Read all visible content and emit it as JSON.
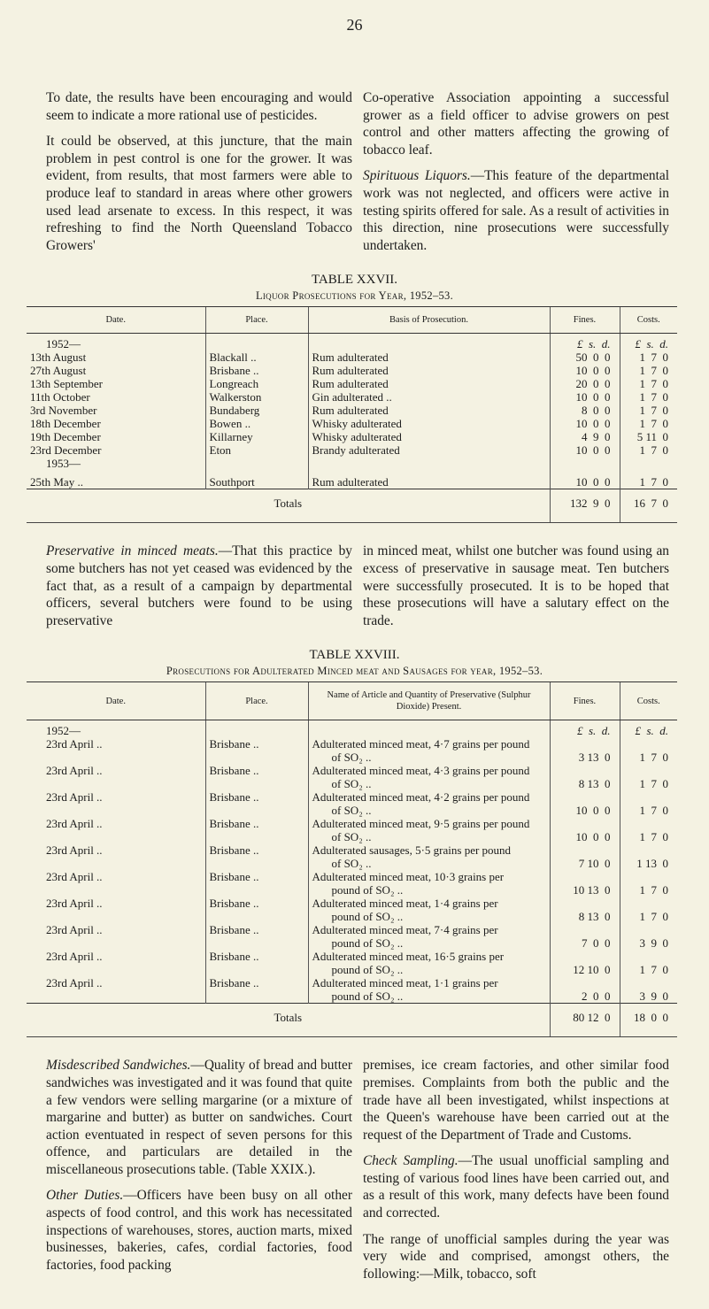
{
  "page_number": "26",
  "top_left": [
    "To date, the results have been encouraging and would seem to indicate a more rational use of pesticides.",
    "It could be observed, at this juncture, that the main problem in pest control is one for the grower. It was evident, from results, that most farmers were able to produce leaf to standard in areas where other growers used lead arsenate to excess. In this respect, it was refreshing to find the North Queensland Tobacco Growers'"
  ],
  "top_right": {
    "p1": "Co-operative Association appointing a successful grower as a field officer to advise growers on pest control and other matters affecting the growing of tobacco leaf.",
    "p2_heading": "Spirituous Liquors.",
    "p2": "—This feature of the departmental work was not neglected, and officers were active in testing spirits offered for sale. As a result of activities in this direction, nine prosecutions were successfully undertaken."
  },
  "table1": {
    "title": "TABLE XXVII.",
    "subtitle": "Liquor Prosecutions for Year, 1952–53.",
    "headers": [
      "Date.",
      "Place.",
      "Basis of Prosecution.",
      "Fines.",
      "Costs."
    ],
    "currency": "£  s.  d.",
    "year1": "1952—",
    "year2": "1953—",
    "rows": [
      {
        "date": "13th August",
        "place": "Blackall ..",
        "basis": "Rum adulterated",
        "fines": "50  0  0",
        "costs": "1  7  0"
      },
      {
        "date": "27th August",
        "place": "Brisbane ..",
        "basis": "Rum adulterated",
        "fines": "10  0  0",
        "costs": "1  7  0"
      },
      {
        "date": "13th September",
        "place": "Longreach",
        "basis": "Rum adulterated",
        "fines": "20  0  0",
        "costs": "1  7  0"
      },
      {
        "date": "11th October",
        "place": "Walkerston",
        "basis": "Gin adulterated ..",
        "fines": "10  0  0",
        "costs": "1  7  0"
      },
      {
        "date": "3rd November",
        "place": "Bundaberg",
        "basis": "Rum adulterated",
        "fines": "8  0  0",
        "costs": "1  7  0"
      },
      {
        "date": "18th December",
        "place": "Bowen ..",
        "basis": "Whisky adulterated",
        "fines": "10  0  0",
        "costs": "1  7  0"
      },
      {
        "date": "19th December",
        "place": "Killarney",
        "basis": "Whisky adulterated",
        "fines": "4  9  0",
        "costs": "5 11  0"
      },
      {
        "date": "23rd December",
        "place": "Eton",
        "basis": "Brandy adulterated",
        "fines": "10  0  0",
        "costs": "1  7  0"
      },
      {
        "date": "25th May ..",
        "place": "Southport",
        "basis": "Rum adulterated",
        "fines": "10  0  0",
        "costs": "1  7  0"
      }
    ],
    "totals_label": "Totals",
    "totals_fines": "132  9  0",
    "totals_costs": "16  7  0"
  },
  "middle_left": {
    "heading": "Preservative in minced meats.",
    "text": "—That this practice by some butchers has not yet ceased was evidenced by the fact that, as a result of a campaign by departmental officers, several butchers were found to be using preservative"
  },
  "middle_right": "in minced meat, whilst one butcher was found using an excess of preservative in sausage meat. Ten butchers were successfully prosecuted. It is to be hoped that these prosecutions will have a salutary effect on the trade.",
  "table2": {
    "title": "TABLE XXVIII.",
    "subtitle": "Prosecutions for Adulterated Minced meat and Sausages for year, 1952–53.",
    "headers": [
      "Date.",
      "Place.",
      "Name of Article and Quantity of Preservative (Sulphur Dioxide) Present.",
      "Fines.",
      "Costs."
    ],
    "currency": "£  s.  d.",
    "year": "1952—",
    "rows": [
      {
        "date": "23rd April ..",
        "place": "Brisbane ..",
        "l1": "Adulterated minced meat, 4·7 grains per pound",
        "l2": "of SO₂ ..",
        "fines": "3 13  0",
        "costs": "1  7  0"
      },
      {
        "date": "23rd April ..",
        "place": "Brisbane ..",
        "l1": "Adulterated minced meat, 4·3 grains per pound",
        "l2": "of SO₂ ..",
        "fines": "8 13  0",
        "costs": "1  7  0"
      },
      {
        "date": "23rd April ..",
        "place": "Brisbane ..",
        "l1": "Adulterated minced meat, 4·2 grains per pound",
        "l2": "of SO₂ ..",
        "fines": "10  0  0",
        "costs": "1  7  0"
      },
      {
        "date": "23rd April ..",
        "place": "Brisbane ..",
        "l1": "Adulterated minced meat, 9·5 grains per pound",
        "l2": "of SO₂ ..",
        "fines": "10  0  0",
        "costs": "1  7  0"
      },
      {
        "date": "23rd April ..",
        "place": "Brisbane ..",
        "l1": "Adulterated sausages, 5·5 grains per pound",
        "l2": "of SO₂ ..",
        "fines": "7 10  0",
        "costs": "1 13  0"
      },
      {
        "date": "23rd April ..",
        "place": "Brisbane ..",
        "l1": "Adulterated minced meat, 10·3 grains per",
        "l2": "pound of SO₂ ..",
        "fines": "10 13  0",
        "costs": "1  7  0"
      },
      {
        "date": "23rd April ..",
        "place": "Brisbane ..",
        "l1": "Adulterated minced meat, 1·4 grains per",
        "l2": "pound of SO₂ ..",
        "fines": "8 13  0",
        "costs": "1  7  0"
      },
      {
        "date": "23rd April ..",
        "place": "Brisbane ..",
        "l1": "Adulterated minced meat, 7·4 grains per",
        "l2": "pound of SO₂ ..",
        "fines": "7  0  0",
        "costs": "3  9  0"
      },
      {
        "date": "23rd April ..",
        "place": "Brisbane ..",
        "l1": "Adulterated minced meat, 16·5 grains per",
        "l2": "pound of SO₂ ..",
        "fines": "12 10  0",
        "costs": "1  7  0"
      },
      {
        "date": "23rd April ..",
        "place": "Brisbane ..",
        "l1": "Adulterated minced meat, 1·1 grains per",
        "l2": "pound of SO₂ ..",
        "fines": "2  0  0",
        "costs": "3  9  0"
      }
    ],
    "totals_label": "Totals",
    "totals_fines": "80 12  0",
    "totals_costs": "18  0  0"
  },
  "bottom_left": {
    "p1_heading": "Misdescribed Sandwiches.",
    "p1": "—Quality of bread and butter sandwiches was investigated and it was found that quite a few vendors were selling margarine (or a mixture of margarine and butter) as butter on sandwiches. Court action eventuated in respect of seven persons for this offence, and particulars are detailed in the miscellaneous prosecutions table. (Table XXIX.).",
    "p2_heading": "Other Duties.",
    "p2": "—Officers have been busy on all other aspects of food control, and this work has necessitated inspections of warehouses, stores, auction marts, mixed businesses, bakeries, cafes, cordial factories, food factories, food packing"
  },
  "bottom_right": {
    "p1": "premises, ice cream factories, and other similar food premises. Complaints from both the public and the trade have all been investigated, whilst inspections at the Queen's warehouse have been carried out at the request of the Department of Trade and Customs.",
    "p2_heading": "Check Sampling.",
    "p2": "—The usual unofficial sampling and testing of various food lines have been carried out, and as a result of this work, many defects have been found and corrected.",
    "p3": "The range of unofficial samples during the year was very wide and comprised, amongst others, the following:—Milk, tobacco, soft"
  }
}
